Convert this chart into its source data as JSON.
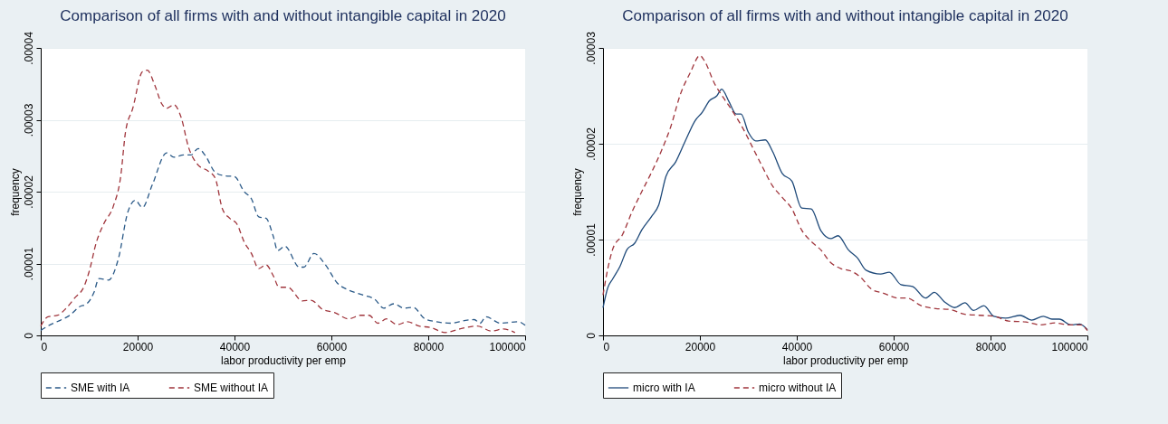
{
  "chart_data": [
    {
      "type": "line",
      "title": "Comparison of all firms with and without intangible capital in 2020",
      "xlabel": "labor productivity per emp",
      "ylabel": "frequency",
      "xlim": [
        0,
        100000
      ],
      "xticks": [
        0,
        20000,
        40000,
        60000,
        80000,
        100000
      ],
      "ylim": [
        0,
        4e-05
      ],
      "yticks": [
        0,
        {
          "value": 1e-05,
          "label": ".00001"
        },
        {
          "value": 2e-05,
          "label": ".00002"
        },
        {
          "value": 3e-05,
          "label": ".00003"
        },
        {
          "value": 4e-05,
          "label": ".00004"
        }
      ],
      "grid": "y",
      "legend": "bottom",
      "series": [
        {
          "name": "SME with IA",
          "color": "#2b5a88",
          "line_style": "dashed",
          "x": [
            0,
            2000,
            4000,
            6000,
            8000,
            9500,
            11000,
            12000,
            14000,
            16000,
            18000,
            19500,
            21000,
            23000,
            26000,
            27500,
            29500,
            31000,
            32500,
            34000,
            36000,
            38000,
            40000,
            42000,
            43500,
            45000,
            46500,
            48000,
            48900,
            50400,
            53400,
            54300,
            56400,
            58800,
            61200,
            63600,
            66600,
            69000,
            70800,
            72900,
            75000,
            76900,
            79300,
            81700,
            84700,
            87700,
            89500,
            90700,
            91900,
            94900,
            98600,
            100000
          ],
          "values": [
            7e-07,
            1.5e-06,
            2.1e-06,
            2.8e-06,
            4e-06,
            4.4e-06,
            6e-06,
            7.9e-06,
            7.7e-06,
            1.06e-05,
            1.72e-05,
            1.88e-05,
            1.78e-05,
            2.09e-05,
            2.54e-05,
            2.48e-05,
            2.51e-05,
            2.51e-05,
            2.6e-05,
            2.5e-05,
            2.27e-05,
            2.22e-05,
            2.21e-05,
            2e-05,
            1.9e-05,
            1.65e-05,
            1.63e-05,
            1.38e-05,
            1.18e-05,
            1.24e-05,
            9.5e-06,
            9.5e-06,
            1.14e-05,
            9.8e-06,
            7.3e-06,
            6.3e-06,
            5.6e-06,
            5e-06,
            3.8e-06,
            4.4e-06,
            3.8e-06,
            3.9e-06,
            2.3e-06,
            1.9e-06,
            1.7e-06,
            2.1e-06,
            2.2e-06,
            1.7e-06,
            2.6e-06,
            1.7e-06,
            1.9e-06,
            1.4e-06
          ]
        },
        {
          "name": "SME without IA",
          "color": "#a0353c",
          "line_style": "dashed",
          "x": [
            0,
            1500,
            3500,
            5000,
            7000,
            9000,
            10000,
            11500,
            13000,
            15000,
            16500,
            17500,
            19000,
            21000,
            22000,
            23500,
            25000,
            26000,
            27500,
            29000,
            30500,
            32500,
            34500,
            36000,
            37500,
            39000,
            40500,
            42000,
            43500,
            45000,
            46500,
            48000,
            49200,
            51000,
            54000,
            55800,
            58200,
            60600,
            63600,
            66000,
            67800,
            69600,
            71400,
            73600,
            75700,
            78100,
            80500,
            83500,
            86500,
            90100,
            93100,
            95500,
            97900
          ],
          "values": [
            1.3e-06,
            2.6e-06,
            2.8e-06,
            3.6e-06,
            5.2e-06,
            6.9e-06,
            8.9e-06,
            1.3e-05,
            1.55e-05,
            1.8e-05,
            2.21e-05,
            2.83e-05,
            3.16e-05,
            3.67e-05,
            3.69e-05,
            3.49e-05,
            3.22e-05,
            3.16e-05,
            3.21e-05,
            3.03e-05,
            2.62e-05,
            2.37e-05,
            2.29e-05,
            2.19e-05,
            1.76e-05,
            1.63e-05,
            1.55e-05,
            1.3e-05,
            1.14e-05,
            9.3e-06,
            9.8e-06,
            8.3e-06,
            6.7e-06,
            6.7e-06,
            4.8e-06,
            4.9e-06,
            3.6e-06,
            3.2e-06,
            2.3e-06,
            2.8e-06,
            2.8e-06,
            1.7e-06,
            2.3e-06,
            1.5e-06,
            1.9e-06,
            1.3e-06,
            1.1e-06,
            4e-07,
            9e-07,
            1.3e-06,
            6e-07,
            9e-07,
            4e-07
          ]
        }
      ]
    },
    {
      "type": "line",
      "title": "Comparison of all firms with and without intangible capital in 2020",
      "xlabel": "labor productivity per emp",
      "ylabel": "frequency",
      "xlim": [
        0,
        100000
      ],
      "xticks": [
        0,
        20000,
        40000,
        60000,
        80000,
        100000
      ],
      "ylim": [
        0,
        3e-05
      ],
      "yticks": [
        0,
        {
          "value": 1e-05,
          "label": ".00001"
        },
        {
          "value": 2e-05,
          "label": ".00002"
        },
        {
          "value": 3e-05,
          "label": ".00003"
        }
      ],
      "grid": "y",
      "legend": "bottom",
      "series": [
        {
          "name": "micro with IA",
          "color": "#1f4a7a",
          "line_style": "solid",
          "x": [
            0,
            1000,
            2000,
            3500,
            5000,
            6500,
            8000,
            10000,
            11500,
            13000,
            15000,
            17000,
            19000,
            20500,
            22000,
            23500,
            24500,
            26000,
            27500,
            28500,
            30000,
            31500,
            33500,
            35000,
            37000,
            39000,
            41000,
            43000,
            45000,
            47000,
            48500,
            50700,
            52500,
            54300,
            57300,
            59100,
            61500,
            63900,
            66600,
            68400,
            70500,
            72600,
            74700,
            76500,
            78600,
            80700,
            83100,
            86100,
            88500,
            90900,
            92700,
            94200,
            96600,
            98400,
            100000
          ],
          "values": [
            2.9e-06,
            5e-06,
            5.9e-06,
            7.2e-06,
            9e-06,
            9.6e-06,
            1.1e-05,
            1.24e-05,
            1.36e-05,
            1.66e-05,
            1.81e-05,
            2.03e-05,
            2.24e-05,
            2.33e-05,
            2.45e-05,
            2.5e-05,
            2.57e-05,
            2.44e-05,
            2.31e-05,
            2.31e-05,
            2.12e-05,
            2.03e-05,
            2.04e-05,
            1.92e-05,
            1.69e-05,
            1.61e-05,
            1.33e-05,
            1.32e-05,
            1.09e-05,
            1.01e-05,
            1.04e-05,
            8.9e-06,
            8.1e-06,
            6.8e-06,
            6.4e-06,
            6.6e-06,
            5.3e-06,
            5.1e-06,
            3.9e-06,
            4.5e-06,
            3.5e-06,
            2.9e-06,
            3.4e-06,
            2.6e-06,
            3.1e-06,
            2e-06,
            1.8e-06,
            2.1e-06,
            1.6e-06,
            2e-06,
            1.7e-06,
            1.7e-06,
            1.1e-06,
            1.2e-06,
            6e-07
          ]
        },
        {
          "name": "micro without IA",
          "color": "#a0353c",
          "line_style": "dashed",
          "x": [
            0,
            1000,
            2000,
            4000,
            6000,
            8000,
            10000,
            12000,
            14000,
            16000,
            18000,
            20000,
            21000,
            23000,
            25000,
            27000,
            29000,
            31000,
            33000,
            35000,
            37000,
            39000,
            41000,
            43000,
            45000,
            47000,
            49000,
            51300,
            53100,
            55500,
            57900,
            60900,
            62700,
            65700,
            68700,
            71700,
            74700,
            77700,
            80700,
            83700,
            87300,
            90300,
            93300,
            96300,
            98700,
            100000
          ],
          "values": [
            4.2e-06,
            7e-06,
            9e-06,
            1.05e-05,
            1.29e-05,
            1.5e-05,
            1.7e-05,
            1.92e-05,
            2.18e-05,
            2.52e-05,
            2.74e-05,
            2.92e-05,
            2.86e-05,
            2.63e-05,
            2.47e-05,
            2.32e-05,
            2.15e-05,
            1.95e-05,
            1.75e-05,
            1.56e-05,
            1.44e-05,
            1.32e-05,
            1.1e-05,
            9.8e-06,
            8.9e-06,
            7.6e-06,
            7e-06,
            6.7e-06,
            6.1e-06,
            4.8e-06,
            4.4e-06,
            3.9e-06,
            3.9e-06,
            3.1e-06,
            2.8e-06,
            2.7e-06,
            2.2e-06,
            2.1e-06,
            2e-06,
            1.5e-06,
            1.4e-06,
            1.1e-06,
            1.3e-06,
            1.1e-06,
            1.1e-06,
            5e-07
          ]
        }
      ]
    }
  ]
}
